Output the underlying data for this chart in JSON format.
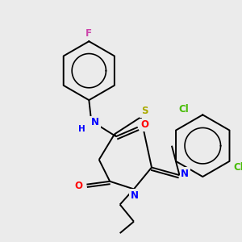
{
  "bg_color": "#ebebeb",
  "bond_color": "#000000",
  "atom_colors": {
    "F": "#cc44aa",
    "O": "#ff0000",
    "N": "#0000ff",
    "S": "#aaaa00",
    "Cl": "#44bb00",
    "H": "#0000ff",
    "C": "#000000"
  },
  "font_size": 8.5,
  "line_width": 1.4,
  "figsize": [
    3.0,
    3.0
  ],
  "dpi": 100
}
